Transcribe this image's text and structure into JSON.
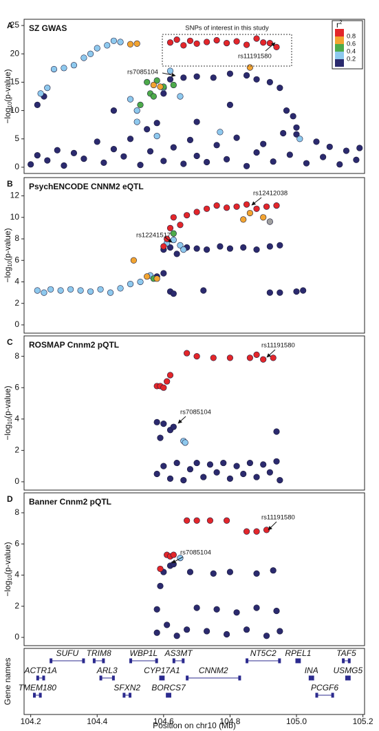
{
  "chart_data": [
    {
      "type": "scatter",
      "panel": "A",
      "title": "SZ GWAS",
      "ylabel": {
        "main": "−log",
        "sub": "10",
        "end": "(p-value)"
      },
      "xlim": [
        104.18,
        105.205
      ],
      "ylim": [
        -1.1,
        26.1
      ],
      "yticks": [
        0,
        5,
        10,
        15,
        20,
        25
      ],
      "annotations": [
        "SNPs of interest in this study",
        "rs11191580",
        "rs7085104"
      ],
      "legend": {
        "title": "r",
        "title_sup": "2",
        "labels": [
          0.8,
          0.6,
          0.4,
          0.2
        ],
        "colors": [
          "#e3262a",
          "#f2a431",
          "#4daa4a",
          "#8ec9ee",
          "#2b2a6e"
        ]
      },
      "series": [
        {
          "color": "#2b2a6e",
          "x": [
            104.2,
            104.22,
            104.25,
            104.28,
            104.3,
            104.33,
            104.36,
            104.4,
            104.42,
            104.45,
            104.48,
            104.5,
            104.53,
            104.56,
            104.58,
            104.6,
            104.63,
            104.66,
            104.68,
            104.7,
            104.73,
            104.76,
            104.79,
            104.82,
            104.85,
            104.88,
            104.9,
            104.93,
            104.96,
            104.98,
            105.0,
            105.03,
            105.06,
            105.08,
            105.1,
            105.13,
            105.15,
            105.18,
            105.19,
            104.22,
            104.24,
            104.45,
            104.6,
            104.62,
            104.66,
            104.7,
            104.75,
            104.8,
            104.85,
            104.88,
            104.92,
            104.95,
            104.97,
            104.99,
            105.0,
            104.8,
            104.7,
            104.55
          ],
          "y": [
            0.5,
            2.1,
            1.2,
            3.0,
            0.3,
            2.5,
            1.5,
            4.5,
            0.8,
            3.2,
            1.9,
            5.0,
            0.4,
            2.8,
            7.8,
            1.1,
            3.5,
            0.6,
            4.8,
            2.0,
            0.9,
            3.9,
            1.4,
            5.2,
            0.2,
            2.6,
            4.1,
            1.0,
            6.0,
            2.2,
            5.8,
            0.7,
            4.5,
            1.8,
            3.6,
            0.5,
            2.9,
            1.3,
            3.4,
            11,
            12.5,
            10,
            13,
            15.5,
            15.8,
            16,
            15.8,
            16.5,
            16.2,
            15.5,
            15,
            14,
            10,
            9,
            7,
            11,
            8,
            6.7
          ]
        },
        {
          "color": "#8ec9ee",
          "x": [
            104.23,
            104.25,
            104.27,
            104.3,
            104.33,
            104.36,
            104.38,
            104.4,
            104.43,
            104.45,
            104.47,
            104.5,
            104.52,
            104.6,
            104.62,
            104.65,
            104.52,
            104.77,
            105.01,
            104.58
          ],
          "y": [
            13,
            14,
            17.3,
            17.5,
            18,
            19.3,
            20,
            21,
            21.5,
            22.3,
            22.1,
            12,
            10,
            14,
            17,
            12.5,
            8,
            6.2,
            5,
            5.5
          ]
        },
        {
          "color": "#4daa4a",
          "x": [
            104.55,
            104.56,
            104.58,
            104.6,
            104.63,
            104.57,
            104.53
          ],
          "y": [
            15,
            13,
            15.3,
            14.2,
            14.5,
            12.5,
            11
          ]
        },
        {
          "color": "#f2a431",
          "x": [
            104.5,
            104.52,
            104.57,
            104.59,
            104.86
          ],
          "y": [
            21.7,
            21.8,
            14.5,
            14.2,
            17.6
          ]
        },
        {
          "color": "#e3262a",
          "x": [
            104.62,
            104.64,
            104.66,
            104.68,
            104.7,
            104.73,
            104.76,
            104.79,
            104.82,
            104.85,
            104.88,
            104.9,
            104.92,
            104.94
          ],
          "y": [
            22,
            22.5,
            21.5,
            22.3,
            21.8,
            22.1,
            22.4,
            21.9,
            22.2,
            21.6,
            22.7,
            22.0,
            21.9,
            21.2
          ]
        }
      ]
    },
    {
      "type": "scatter",
      "panel": "B",
      "title": "PsychENCODE CNNM2 eQTL",
      "ylabel": {
        "main": "−log",
        "sub": "10",
        "end": "(p-value)"
      },
      "xlim": [
        104.18,
        105.205
      ],
      "ylim": [
        -0.77,
        13.7
      ],
      "yticks": [
        0,
        2,
        4,
        6,
        8,
        10,
        12
      ],
      "annotations": [
        "rs12412038",
        "rs12241517"
      ],
      "series": [
        {
          "color": "#2b2a6e",
          "x": [
            104.58,
            104.6,
            104.62,
            104.64,
            104.67,
            104.7,
            104.73,
            104.77,
            104.8,
            104.84,
            104.88,
            104.92,
            104.95,
            104.6,
            104.62,
            104.72,
            104.92,
            104.95,
            105.0,
            105.02,
            104.63
          ],
          "y": [
            4.5,
            7.0,
            7.2,
            6.6,
            7.2,
            7.1,
            7.0,
            7.3,
            7.1,
            7.2,
            7.0,
            7.3,
            7.4,
            4.8,
            3.1,
            3.2,
            3.0,
            3.0,
            3.1,
            3.2,
            2.9
          ]
        },
        {
          "color": "#8ec9ee",
          "x": [
            104.22,
            104.24,
            104.26,
            104.29,
            104.32,
            104.35,
            104.38,
            104.41,
            104.44,
            104.47,
            104.5,
            104.53,
            104.56,
            104.61,
            104.63,
            104.65,
            104.66
          ],
          "y": [
            3.2,
            3.0,
            3.3,
            3.2,
            3.3,
            3.2,
            3.1,
            3.3,
            3.0,
            3.4,
            3.8,
            4.0,
            4.6,
            7.6,
            7.9,
            7.4,
            7.0
          ]
        },
        {
          "color": "#4daa4a",
          "x": [
            104.57,
            104.63
          ],
          "y": [
            4.3,
            8.5
          ]
        },
        {
          "color": "#f2a431",
          "x": [
            104.51,
            104.55,
            104.58,
            104.84,
            104.86,
            104.9
          ],
          "y": [
            6.0,
            4.5,
            4.3,
            9.8,
            10.4,
            10.0
          ]
        },
        {
          "color": "#e3262a",
          "x": [
            104.6,
            104.61,
            104.62,
            104.63,
            104.65,
            104.67,
            104.7,
            104.73,
            104.76,
            104.79,
            104.82,
            104.85,
            104.88,
            104.91,
            104.94
          ],
          "y": [
            7.3,
            8.0,
            9.0,
            10.0,
            9.3,
            10.2,
            10.5,
            10.8,
            11.1,
            10.9,
            11.0,
            11.2,
            10.8,
            11.0,
            11.1
          ]
        },
        {
          "color": "#a0a0a0",
          "x": [
            104.92
          ],
          "y": [
            9.6
          ]
        }
      ]
    },
    {
      "type": "scatter",
      "panel": "C",
      "title": "ROSMAP Cnnm2 pQTL",
      "ylabel": {
        "main": "−log",
        "sub": "10",
        "end": "(p-value)"
      },
      "xlim": [
        104.18,
        105.205
      ],
      "ylim": [
        -0.53,
        9.3
      ],
      "yticks": [
        0,
        2,
        4,
        6,
        8
      ],
      "annotations": [
        "rs11191580",
        "rs7085104"
      ],
      "series": [
        {
          "color": "#2b2a6e",
          "x": [
            104.58,
            104.59,
            104.6,
            104.62,
            104.63,
            104.94,
            104.58,
            104.6,
            104.62,
            104.64,
            104.66,
            104.68,
            104.7,
            104.72,
            104.74,
            104.76,
            104.78,
            104.8,
            104.82,
            104.84,
            104.86,
            104.88,
            104.9,
            104.92,
            104.94,
            104.95
          ],
          "y": [
            3.8,
            2.8,
            3.7,
            3.3,
            3.5,
            3.2,
            0.5,
            1.0,
            0.2,
            1.2,
            0.1,
            0.8,
            1.2,
            0.3,
            1.1,
            0.6,
            1.2,
            0.2,
            1.0,
            0.5,
            1.2,
            0.3,
            1.1,
            0.6,
            1.3,
            0.1
          ]
        },
        {
          "color": "#8ec9ee",
          "x": [
            104.66,
            104.665
          ],
          "y": [
            2.6,
            2.5
          ]
        },
        {
          "color": "#e3262a",
          "x": [
            104.58,
            104.59,
            104.6,
            104.61,
            104.62,
            104.67,
            104.7,
            104.75,
            104.8,
            104.86,
            104.88,
            104.9,
            104.93
          ],
          "y": [
            6.1,
            6.1,
            6.0,
            6.4,
            6.8,
            8.2,
            8.0,
            7.9,
            7.9,
            7.9,
            8.1,
            7.8,
            7.9
          ]
        }
      ]
    },
    {
      "type": "scatter",
      "panel": "D",
      "title": "Banner Cnnm2 pQTL",
      "ylabel": {
        "main": "−log",
        "sub": "10",
        "end": "(p-value)"
      },
      "xlim": [
        104.18,
        105.205
      ],
      "ylim": [
        -0.53,
        9.28
      ],
      "yticks": [
        0,
        2,
        4,
        6,
        8
      ],
      "annotations": [
        "rs11191580",
        "rs7085104"
      ],
      "series": [
        {
          "color": "#2b2a6e",
          "x": [
            104.58,
            104.59,
            104.6,
            104.62,
            104.63,
            104.68,
            104.75,
            104.8,
            104.88,
            104.93,
            104.58,
            104.61,
            104.64,
            104.67,
            104.7,
            104.73,
            104.76,
            104.79,
            104.82,
            104.85,
            104.88,
            104.91,
            104.94,
            104.95
          ],
          "y": [
            1.8,
            3.3,
            4.2,
            4.6,
            4.7,
            4.2,
            4.1,
            4.2,
            4.1,
            4.3,
            0.3,
            0.8,
            0.1,
            0.5,
            1.9,
            0.4,
            1.8,
            0.2,
            1.6,
            0.5,
            1.9,
            0.1,
            1.7,
            0.4
          ]
        },
        {
          "color": "#8ec9ee",
          "x": [
            104.65
          ],
          "y": [
            5.1
          ]
        },
        {
          "color": "#e3262a",
          "x": [
            104.59,
            104.61,
            104.62,
            104.63,
            104.67,
            104.7,
            104.74,
            104.79,
            104.85,
            104.88,
            104.91
          ],
          "y": [
            4.4,
            5.3,
            5.2,
            5.3,
            7.5,
            7.5,
            7.5,
            7.5,
            6.8,
            6.8,
            6.9
          ]
        }
      ]
    }
  ],
  "gene_track": {
    "ylabel": "Gene names",
    "xlabel": "Position on chr10 (Mb)",
    "xlim": [
      104.18,
      105.205
    ],
    "xticks": [
      104.2,
      104.4,
      104.6,
      104.8,
      {
        "value": 105,
        "label": "105.0"
      },
      105.2
    ],
    "rows": [
      [
        {
          "name": "SUFU",
          "start": 104.26,
          "end": 104.36
        },
        {
          "name": "TRIM8",
          "start": 104.39,
          "end": 104.42
        },
        {
          "name": "WBP1L",
          "start": 104.5,
          "end": 104.58
        },
        {
          "name": "AS3MT",
          "start": 104.63,
          "end": 104.66
        },
        {
          "name": "NT5C2",
          "start": 104.85,
          "end": 104.95
        },
        {
          "name": "RPEL1",
          "start": 105.0,
          "end": 105.01
        },
        {
          "name": "TAF5",
          "start": 105.14,
          "end": 105.16
        }
      ],
      [
        {
          "name": "ACTR1A",
          "start": 104.22,
          "end": 104.24
        },
        {
          "name": "ARL3",
          "start": 104.41,
          "end": 104.45
        },
        {
          "name": "CYP17A1",
          "start": 104.59,
          "end": 104.6
        },
        {
          "name": "CNNM2",
          "start": 104.67,
          "end": 104.83
        },
        {
          "name": "INA",
          "start": 105.04,
          "end": 105.05
        },
        {
          "name": "USMG5",
          "start": 105.15,
          "end": 105.16
        }
      ],
      [
        {
          "name": "TMEM180",
          "start": 104.21,
          "end": 104.23
        },
        {
          "name": "SFXN2",
          "start": 104.48,
          "end": 104.5
        },
        {
          "name": "BORCS7",
          "start": 104.61,
          "end": 104.62
        },
        {
          "name": "PCGF6",
          "start": 105.06,
          "end": 105.11
        }
      ]
    ]
  }
}
